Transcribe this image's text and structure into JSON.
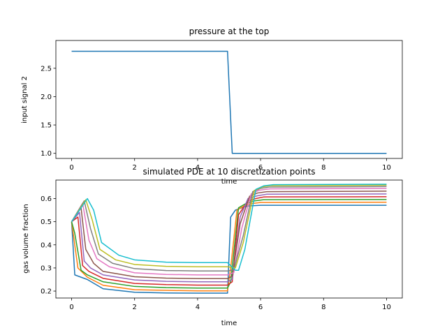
{
  "chart_data": [
    {
      "type": "line",
      "title": "pressure at the top",
      "xlabel": "time",
      "ylabel": "input signal 2",
      "xlim": [
        -0.5,
        10.5
      ],
      "ylim": [
        0.91,
        2.99
      ],
      "xticks": [
        0,
        2,
        4,
        6,
        8,
        10
      ],
      "yticks": [
        1.0,
        1.5,
        2.0,
        2.5
      ],
      "xtick_labels": [
        "0",
        "2",
        "4",
        "6",
        "8",
        "10"
      ],
      "ytick_labels": [
        "1.0",
        "1.5",
        "2.0",
        "2.5"
      ],
      "series": [
        {
          "color": "#1f77b4",
          "x": [
            0,
            4.95,
            5.1,
            10
          ],
          "y": [
            2.8,
            2.8,
            1.0,
            1.0
          ]
        }
      ]
    },
    {
      "type": "line",
      "title": "simulated PDE at 10 discretization points",
      "xlabel": "time",
      "ylabel": "gas volume fraction",
      "xlim": [
        -0.5,
        10.5
      ],
      "ylim": [
        0.17,
        0.68
      ],
      "xticks": [
        0,
        2,
        4,
        6,
        8,
        10
      ],
      "yticks": [
        0.2,
        0.3,
        0.4,
        0.5,
        0.6
      ],
      "xtick_labels": [
        "0",
        "2",
        "4",
        "6",
        "8",
        "10"
      ],
      "ytick_labels": [
        "0.2",
        "0.3",
        "0.4",
        "0.5",
        "0.6"
      ],
      "series": [
        {
          "color": "#1f77b4",
          "x": [
            0,
            0.1,
            0.5,
            1,
            2,
            3,
            4,
            4.95,
            5.05,
            5.2,
            5.4,
            5.6,
            6,
            10
          ],
          "y": [
            0.5,
            0.27,
            0.25,
            0.21,
            0.195,
            0.192,
            0.191,
            0.191,
            0.52,
            0.55,
            0.56,
            0.568,
            0.571,
            0.571
          ]
        },
        {
          "color": "#ff7f0e",
          "x": [
            0,
            0.1,
            0.2,
            0.5,
            1,
            2,
            3,
            4,
            4.95,
            5.05,
            5.25,
            5.5,
            5.7,
            6,
            10
          ],
          "y": [
            0.5,
            0.4,
            0.3,
            0.26,
            0.225,
            0.206,
            0.203,
            0.201,
            0.201,
            0.3,
            0.55,
            0.57,
            0.578,
            0.583,
            0.584
          ]
        },
        {
          "color": "#2ca02c",
          "x": [
            0,
            0.1,
            0.3,
            0.5,
            1,
            2,
            3,
            4,
            4.95,
            5.05,
            5.3,
            5.55,
            5.8,
            6.1,
            10
          ],
          "y": [
            0.5,
            0.45,
            0.29,
            0.27,
            0.24,
            0.22,
            0.215,
            0.213,
            0.213,
            0.24,
            0.56,
            0.58,
            0.59,
            0.595,
            0.596
          ]
        },
        {
          "color": "#d62728",
          "x": [
            0,
            0.2,
            0.35,
            0.55,
            1,
            2,
            3,
            4,
            4.95,
            5.1,
            5.3,
            5.6,
            5.85,
            6.1,
            10
          ],
          "y": [
            0.5,
            0.52,
            0.31,
            0.285,
            0.255,
            0.233,
            0.228,
            0.226,
            0.226,
            0.24,
            0.53,
            0.59,
            0.6,
            0.607,
            0.608
          ]
        },
        {
          "color": "#9467bd",
          "x": [
            0,
            0.25,
            0.4,
            0.6,
            1,
            2,
            3,
            4,
            4.95,
            5.1,
            5.35,
            5.6,
            5.9,
            6.2,
            10
          ],
          "y": [
            0.5,
            0.54,
            0.33,
            0.3,
            0.27,
            0.248,
            0.242,
            0.24,
            0.24,
            0.25,
            0.52,
            0.6,
            0.612,
            0.619,
            0.62
          ]
        },
        {
          "color": "#8c564b",
          "x": [
            0,
            0.3,
            0.45,
            0.7,
            1,
            2,
            3,
            4,
            4.95,
            5.1,
            5.35,
            5.65,
            5.9,
            6.2,
            10
          ],
          "y": [
            0.5,
            0.56,
            0.38,
            0.32,
            0.285,
            0.262,
            0.256,
            0.254,
            0.254,
            0.265,
            0.49,
            0.61,
            0.624,
            0.63,
            0.632
          ]
        },
        {
          "color": "#e377c2",
          "x": [
            0,
            0.35,
            0.55,
            0.8,
            1.2,
            2,
            3,
            4,
            4.95,
            5.15,
            5.4,
            5.7,
            5.95,
            6.3,
            10
          ],
          "y": [
            0.5,
            0.58,
            0.42,
            0.34,
            0.305,
            0.279,
            0.272,
            0.27,
            0.27,
            0.28,
            0.47,
            0.62,
            0.636,
            0.642,
            0.644
          ]
        },
        {
          "color": "#7f7f7f",
          "x": [
            0,
            0.4,
            0.6,
            0.85,
            1.3,
            2,
            3,
            4,
            4.95,
            5.15,
            5.45,
            5.75,
            6,
            6.3,
            10
          ],
          "y": [
            0.5,
            0.59,
            0.47,
            0.36,
            0.32,
            0.297,
            0.289,
            0.287,
            0.287,
            0.292,
            0.44,
            0.63,
            0.644,
            0.65,
            0.652
          ]
        },
        {
          "color": "#bcbd22",
          "x": [
            0,
            0.45,
            0.65,
            0.9,
            1.4,
            2,
            3,
            4,
            4.95,
            5.2,
            5.45,
            5.8,
            6.05,
            6.3,
            10
          ],
          "y": [
            0.5,
            0.595,
            0.51,
            0.38,
            0.335,
            0.315,
            0.307,
            0.305,
            0.305,
            0.3,
            0.41,
            0.635,
            0.65,
            0.656,
            0.658
          ]
        },
        {
          "color": "#17becf",
          "x": [
            0,
            0.5,
            0.7,
            0.95,
            1.5,
            2,
            3,
            4,
            4.95,
            5.2,
            5.3,
            5.5,
            5.85,
            6.1,
            6.4,
            10
          ],
          "y": [
            0.5,
            0.6,
            0.55,
            0.41,
            0.355,
            0.335,
            0.325,
            0.323,
            0.323,
            0.29,
            0.29,
            0.38,
            0.64,
            0.655,
            0.66,
            0.662
          ]
        }
      ]
    }
  ]
}
